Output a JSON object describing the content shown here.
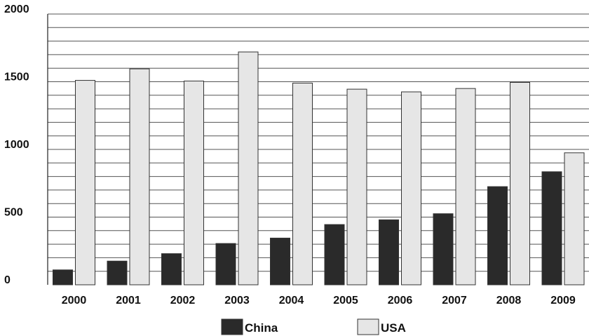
{
  "chart_data": {
    "type": "bar",
    "title": "",
    "xlabel": "",
    "ylabel": "",
    "categories": [
      "2000",
      "2001",
      "2002",
      "2003",
      "2004",
      "2005",
      "2006",
      "2007",
      "2008",
      "2009"
    ],
    "series": [
      {
        "name": "China",
        "values": [
          110,
          175,
          230,
          305,
          345,
          445,
          480,
          525,
          725,
          835
        ],
        "color": "#2a2a2a"
      },
      {
        "name": "USA",
        "values": [
          1510,
          1595,
          1505,
          1720,
          1490,
          1445,
          1425,
          1450,
          1495,
          975
        ],
        "color": "#e6e6e6"
      }
    ],
    "ylim": [
      0,
      2000
    ],
    "yticks": [
      0,
      500,
      1000,
      1500,
      2000
    ],
    "grid": true,
    "legend_position": "bottom"
  },
  "colors": {
    "bar_outline": "#333333",
    "grid": "#555555",
    "text": "#111111"
  }
}
